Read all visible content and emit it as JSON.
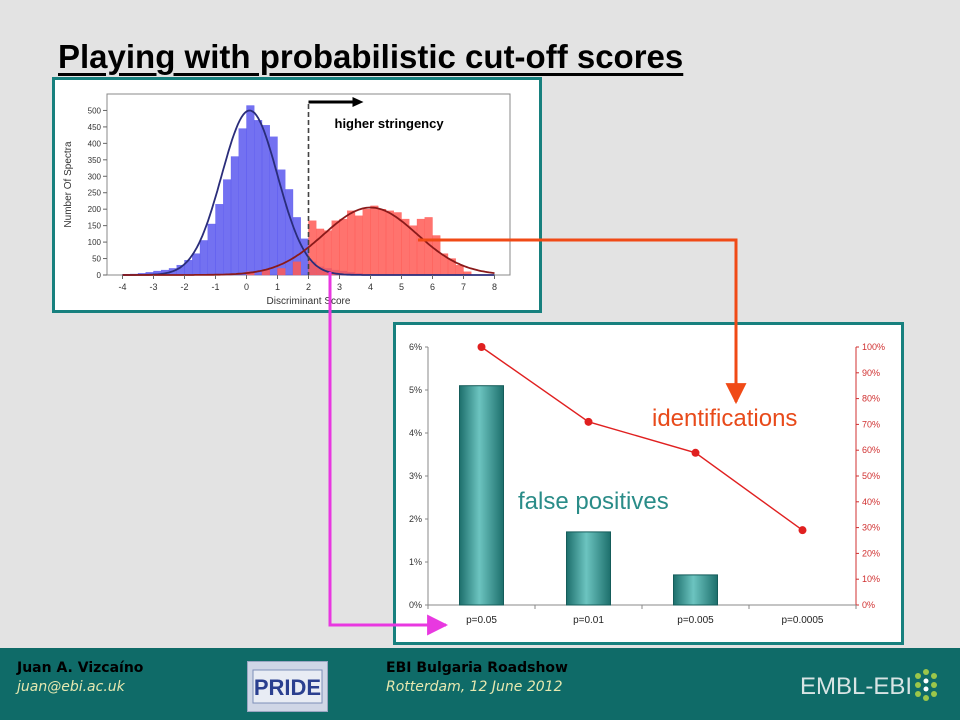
{
  "slide": {
    "title": "Playing with probabilistic cut-off scores",
    "colors": {
      "background": "#e3e3e3",
      "frame": "#17807e",
      "footer": "#0f6b68"
    }
  },
  "chart_data": [
    {
      "type": "bar",
      "xlabel": "Discriminant Score",
      "ylabel": "Number Of Spectra",
      "xlim": [
        -4.5,
        8.5
      ],
      "ylim": [
        0,
        550
      ],
      "x_ticks": [
        "-4",
        "-3",
        "-2",
        "-1",
        "0",
        "1",
        "2",
        "3",
        "4",
        "5",
        "6",
        "7",
        "8"
      ],
      "y_ticks": [
        "0",
        "50",
        "100",
        "150",
        "200",
        "250",
        "300",
        "350",
        "400",
        "450",
        "500"
      ],
      "grid": false,
      "annotations": {
        "cutoff": 2,
        "arrow_label": "higher stringency"
      },
      "bin_width": 0.25,
      "series": [
        {
          "color": "#5a58ee",
          "bin_starts": [
            -4,
            -3.75,
            -3.5,
            -3.25,
            -3,
            -2.75,
            -2.5,
            -2.25,
            -2,
            -1.75,
            -1.5,
            -1.25,
            -1,
            -0.75,
            -0.5,
            -0.25,
            0,
            0.25,
            0.5,
            0.75,
            1,
            1.25,
            1.5,
            1.75,
            2,
            2.25,
            2.5,
            2.75,
            3,
            3.25,
            3.5
          ],
          "values": [
            2,
            3,
            5,
            8,
            12,
            15,
            20,
            30,
            45,
            65,
            105,
            155,
            215,
            290,
            360,
            445,
            515,
            470,
            455,
            420,
            320,
            260,
            175,
            110,
            40,
            25,
            20,
            15,
            12,
            8,
            5
          ]
        },
        {
          "color": "#ff5a55",
          "bin_starts": [
            0,
            0.5,
            1,
            1.5,
            2,
            2.25,
            2.5,
            2.75,
            3,
            3.25,
            3.5,
            3.75,
            4,
            4.25,
            4.5,
            4.75,
            5,
            5.25,
            5.5,
            5.75,
            6,
            6.25,
            6.5,
            6.75,
            7
          ],
          "values": [
            10,
            15,
            20,
            40,
            165,
            140,
            135,
            165,
            170,
            195,
            180,
            200,
            210,
            200,
            195,
            190,
            170,
            150,
            170,
            175,
            120,
            65,
            50,
            30,
            10
          ]
        }
      ],
      "curves": [
        {
          "color": "#2a2d7a",
          "fit": "gaussian",
          "mean": 0.1,
          "sd": 0.9,
          "peak": 500
        },
        {
          "color": "#8a1a1a",
          "fit": "gaussian",
          "mean": 4.0,
          "sd": 1.5,
          "peak": 205
        }
      ]
    },
    {
      "type": "bar",
      "categories": [
        "p=0.05",
        "p=0.01",
        "p=0.005",
        "p=0.0005"
      ],
      "ylim": [
        0,
        6
      ],
      "y_ticks": [
        "0%",
        "1%",
        "2%",
        "3%",
        "4%",
        "5%",
        "6%"
      ],
      "y2lim": [
        0,
        100
      ],
      "y2_ticks": [
        "0%",
        "10%",
        "20%",
        "30%",
        "40%",
        "50%",
        "60%",
        "70%",
        "80%",
        "90%",
        "100%"
      ],
      "series": [
        {
          "name": "false positives",
          "type": "bar",
          "axis": "left",
          "color": "#2a8c88",
          "values": [
            5.1,
            1.7,
            0.7,
            0
          ]
        },
        {
          "name": "identifications",
          "type": "line",
          "axis": "right",
          "color": "#e02020",
          "values": [
            100,
            71,
            59,
            29
          ]
        }
      ],
      "label_colors": {
        "identifications": "#e84a1a",
        "false_positives": "#2a8c88"
      }
    }
  ],
  "footer": {
    "author_name": "Juan A. Vizcaíno",
    "author_email": "juan@ebi.ac.uk",
    "event_name": "EBI Bulgaria Roadshow",
    "event_detail": "Rotterdam, 12 June 2012",
    "logo_left_text": "PRIDE",
    "logo_right_text": "EMBL-EBI"
  }
}
